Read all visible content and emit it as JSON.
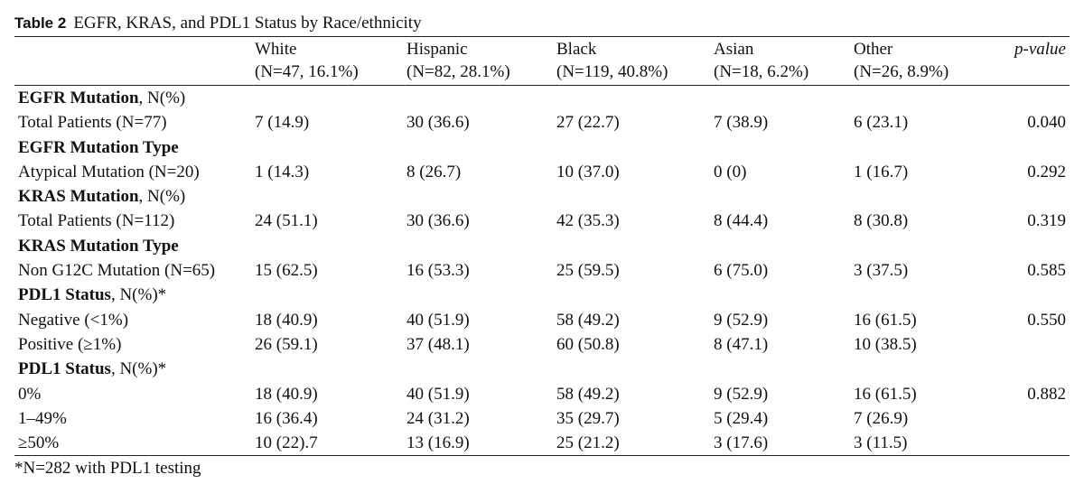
{
  "caption": {
    "label": "Table 2",
    "title": "EGFR, KRAS, and PDL1 Status by Race/ethnicity"
  },
  "columns": [
    {
      "name": "White",
      "n": "(N=47, 16.1%)"
    },
    {
      "name": "Hispanic",
      "n": "(N=82, 28.1%)"
    },
    {
      "name": "Black",
      "n": "(N=119, 40.8%)"
    },
    {
      "name": "Asian",
      "n": "(N=18, 6.2%)"
    },
    {
      "name": "Other",
      "n": "(N=26, 8.9%)"
    }
  ],
  "pvalue_header": "p-value",
  "rows": [
    {
      "type": "section",
      "bold": "EGFR Mutation",
      "rest": ", N(%)"
    },
    {
      "type": "data",
      "label": "Total Patients (N=77)",
      "values": [
        "7 (14.9)",
        "30 (36.6)",
        "27 (22.7)",
        "7 (38.9)",
        "6 (23.1)"
      ],
      "p": "0.040"
    },
    {
      "type": "section",
      "bold": "EGFR Mutation Type",
      "rest": ""
    },
    {
      "type": "data",
      "label": "Atypical Mutation (N=20)",
      "values": [
        "1 (14.3)",
        "8 (26.7)",
        "10 (37.0)",
        "0 (0)",
        "1 (16.7)"
      ],
      "p": "0.292"
    },
    {
      "type": "section",
      "bold": "KRAS Mutation",
      "rest": ", N(%)"
    },
    {
      "type": "data",
      "label": "Total Patients (N=112)",
      "values": [
        "24 (51.1)",
        "30 (36.6)",
        "42 (35.3)",
        "8 (44.4)",
        "8 (30.8)"
      ],
      "p": "0.319"
    },
    {
      "type": "section",
      "bold": "KRAS Mutation Type",
      "rest": ""
    },
    {
      "type": "data",
      "label": "Non G12C Mutation (N=65)",
      "values": [
        "15 (62.5)",
        "16 (53.3)",
        "25 (59.5)",
        "6 (75.0)",
        "3 (37.5)"
      ],
      "p": "0.585"
    },
    {
      "type": "section",
      "bold": "PDL1 Status",
      "rest": ", N(%)*"
    },
    {
      "type": "data",
      "label": "Negative (<1%)",
      "values": [
        "18 (40.9)",
        "40 (51.9)",
        "58 (49.2)",
        "9 (52.9)",
        "16 (61.5)"
      ],
      "p": "0.550"
    },
    {
      "type": "data",
      "label": "Positive (≥1%)",
      "values": [
        "26 (59.1)",
        "37 (48.1)",
        "60 (50.8)",
        "8 (47.1)",
        "10 (38.5)"
      ],
      "p": ""
    },
    {
      "type": "section",
      "bold": "PDL1 Status",
      "rest": ", N(%)*"
    },
    {
      "type": "data",
      "label": "0%",
      "values": [
        "18 (40.9)",
        "40 (51.9)",
        "58 (49.2)",
        "9 (52.9)",
        "16 (61.5)"
      ],
      "p": "0.882"
    },
    {
      "type": "data",
      "label": "1–49%",
      "values": [
        "16 (36.4)",
        "24 (31.2)",
        "35 (29.7)",
        "5 (29.4)",
        "7 (26.9)"
      ],
      "p": ""
    },
    {
      "type": "data",
      "label": "≥50%",
      "values": [
        "10 (22).7",
        "13 (16.9)",
        "25 (21.2)",
        "3 (17.6)",
        "3 (11.5)"
      ],
      "p": ""
    }
  ],
  "footnote": "*N=282 with PDL1 testing"
}
